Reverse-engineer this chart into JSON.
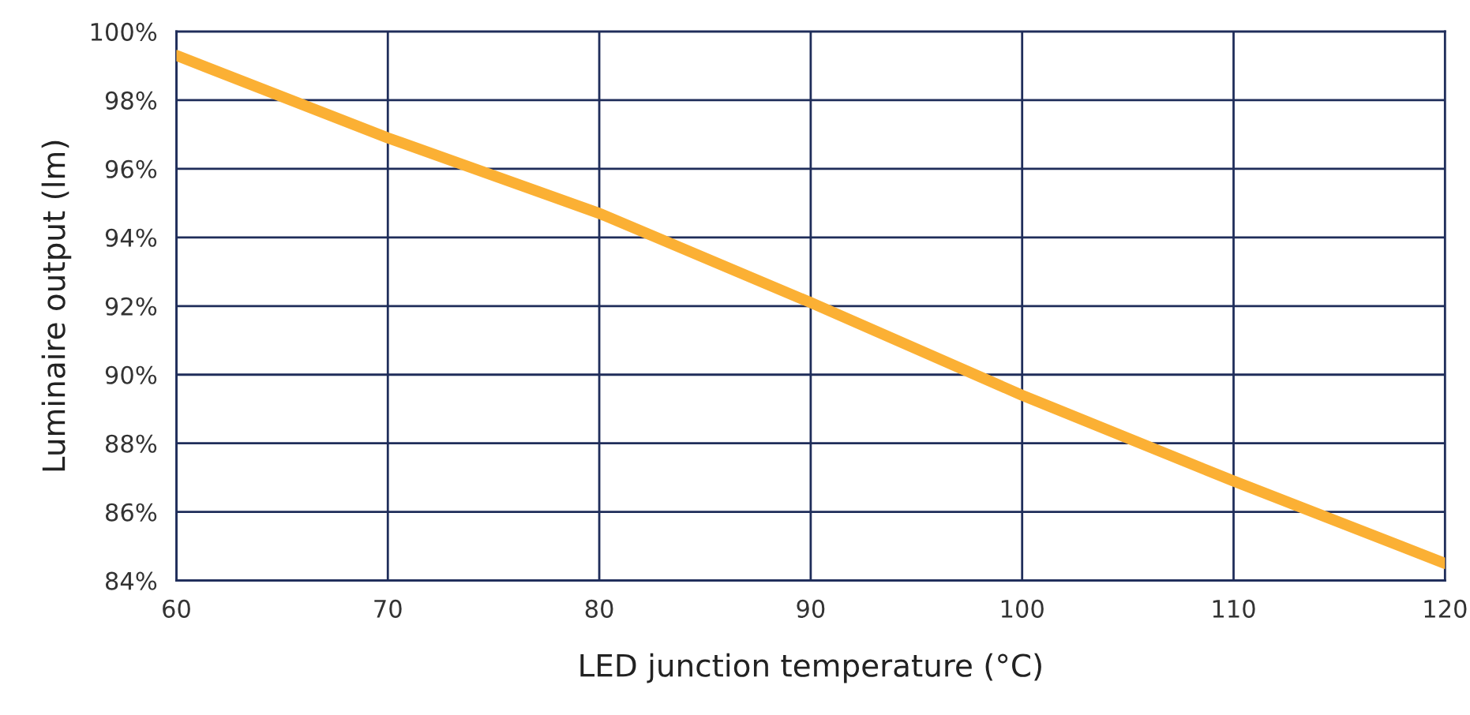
{
  "chart_data": {
    "type": "line",
    "xlabel": "LED junction temperature (°C)",
    "ylabel": "Luminaire output (lm)",
    "x": [
      60,
      70,
      80,
      90,
      100,
      110,
      120
    ],
    "series": [
      {
        "color": "#fbb034",
        "values": [
          99.3,
          96.9,
          94.7,
          92.1,
          89.4,
          86.9,
          84.5
        ]
      }
    ],
    "xlim": [
      60,
      120
    ],
    "xticks": [
      60,
      70,
      80,
      90,
      100,
      110,
      120
    ],
    "ylim": [
      84,
      100
    ],
    "yticks": [
      {
        "value": 84,
        "label": "84%"
      },
      {
        "value": 86,
        "label": "86%"
      },
      {
        "value": 88,
        "label": "88%"
      },
      {
        "value": 90,
        "label": "90%"
      },
      {
        "value": 92,
        "label": "92%"
      },
      {
        "value": 94,
        "label": "94%"
      },
      {
        "value": 96,
        "label": "96%"
      },
      {
        "value": 98,
        "label": "98%"
      },
      {
        "value": 100,
        "label": "100%"
      }
    ],
    "grid": true,
    "marker": "none",
    "line_style": "solid"
  }
}
